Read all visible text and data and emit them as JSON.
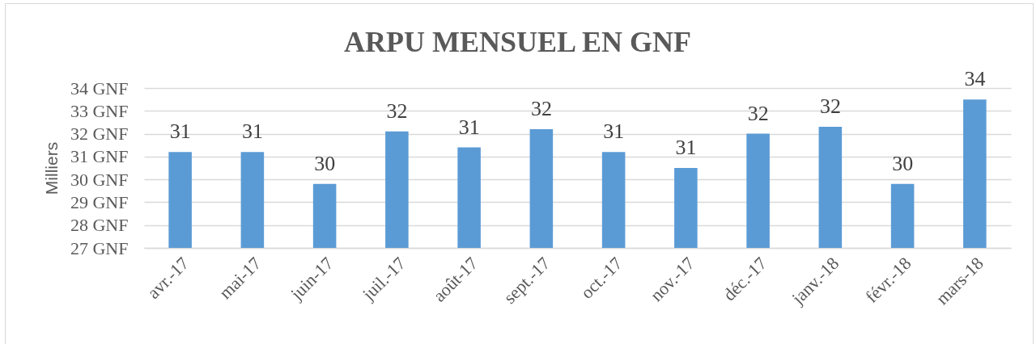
{
  "chart_data": {
    "type": "bar",
    "title": "ARPU MENSUEL EN GNF",
    "ylabel": "Milliers",
    "categories": [
      "avr.-17",
      "mai-17",
      "juin-17",
      "juil.-17",
      "août-17",
      "sept.-17",
      "oct.-17",
      "nov.-17",
      "déc.-17",
      "janv.-18",
      "févr.-18",
      "mars-18"
    ],
    "values": [
      31.2,
      31.2,
      29.8,
      32.1,
      31.4,
      32.2,
      31.2,
      30.5,
      32.0,
      32.3,
      29.8,
      33.5
    ],
    "value_labels": [
      "31",
      "31",
      "30",
      "32",
      "31",
      "32",
      "31",
      "31",
      "32",
      "32",
      "30",
      "34"
    ],
    "color": "#5b9bd5",
    "ylim": [
      27,
      34
    ],
    "yticks": [
      {
        "value": 27,
        "label": "27 GNF"
      },
      {
        "value": 28,
        "label": "28 GNF"
      },
      {
        "value": 29,
        "label": "29 GNF"
      },
      {
        "value": 30,
        "label": "30 GNF"
      },
      {
        "value": 31,
        "label": "31 GNF"
      },
      {
        "value": 32,
        "label": "32 GNF"
      },
      {
        "value": 33,
        "label": "33 GNF"
      },
      {
        "value": 34,
        "label": "34 GNF"
      }
    ],
    "grid": "y"
  }
}
